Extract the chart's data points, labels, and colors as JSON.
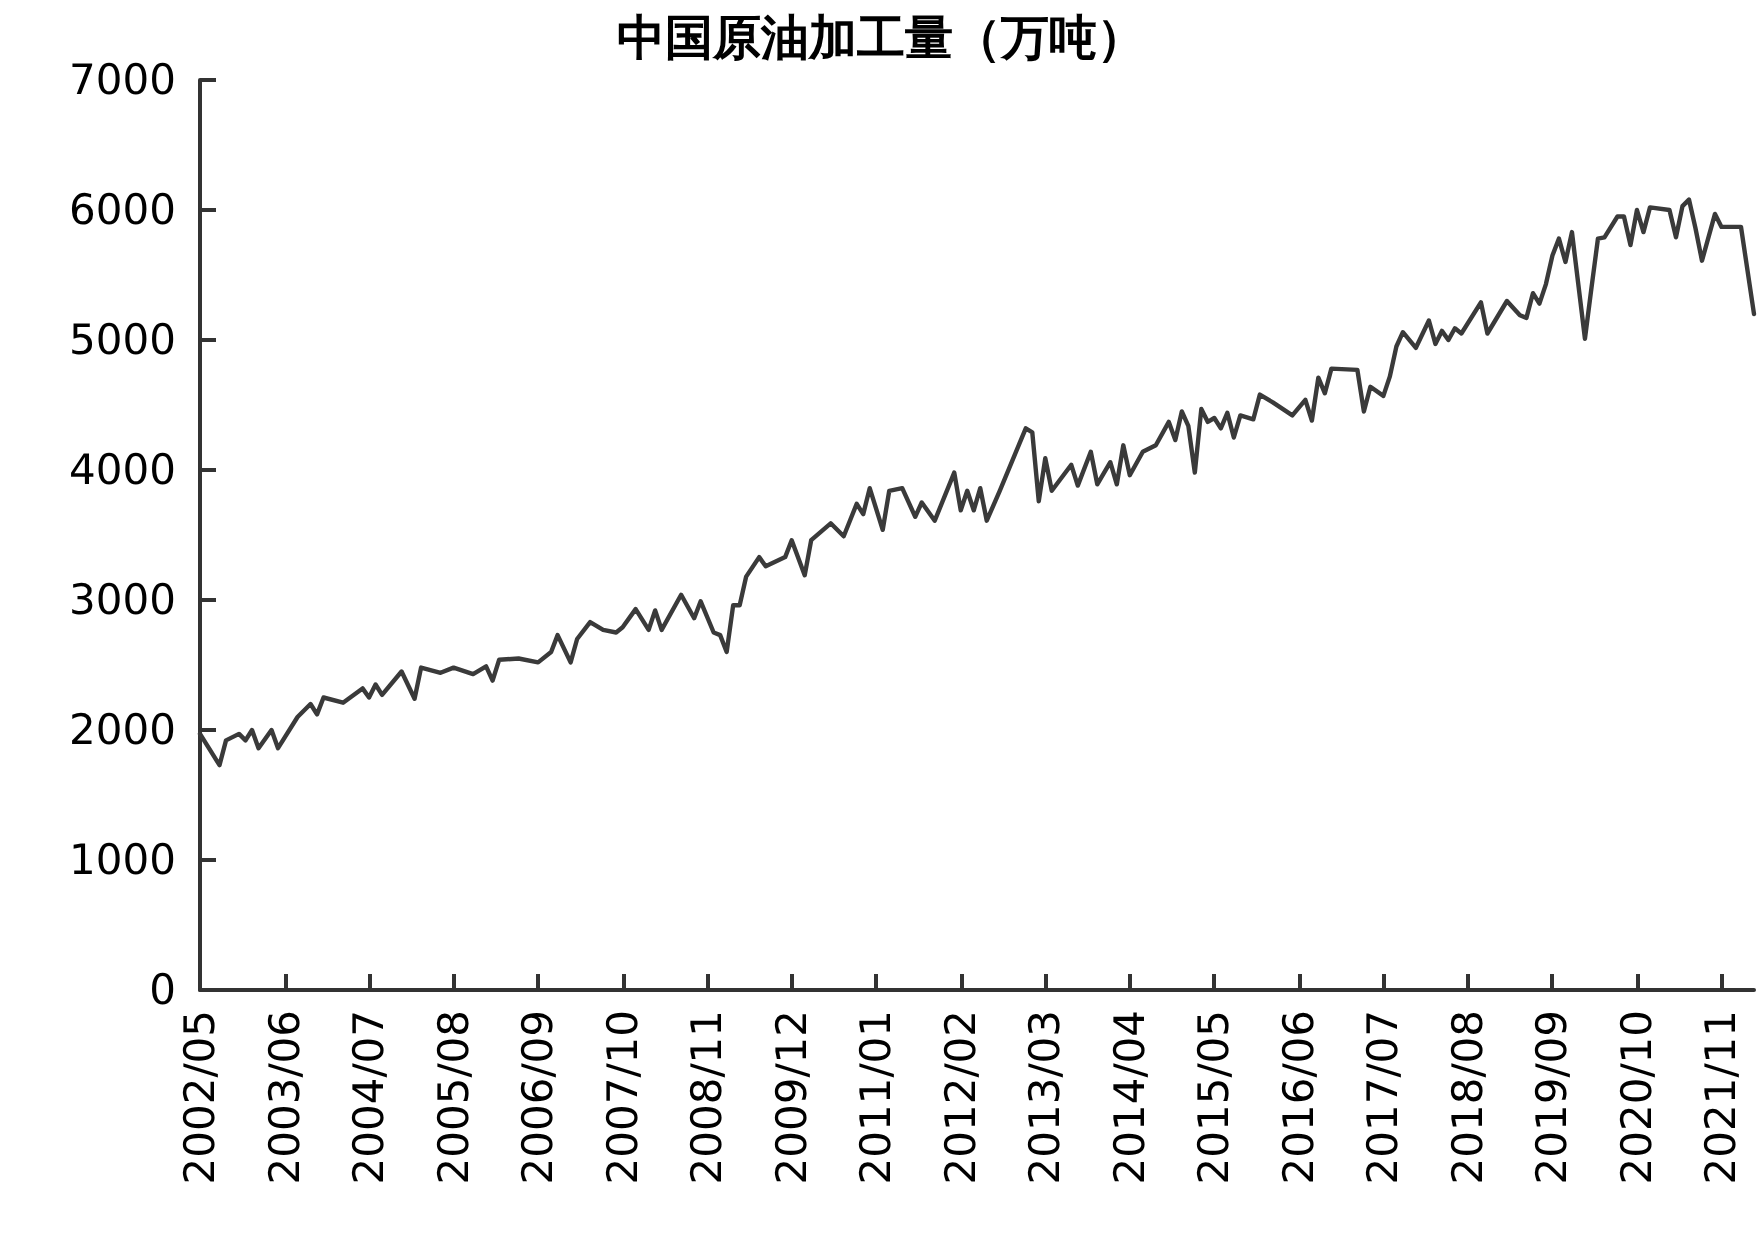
{
  "chart_data": {
    "type": "line",
    "title": "中国原油加工量（万吨）",
    "x": [
      "2002-05",
      "2002-08",
      "2002-09",
      "2002-11",
      "2002-12",
      "2003-01",
      "2003-02",
      "2003-04",
      "2003-05",
      "2003-08",
      "2003-10",
      "2003-11",
      "2003-12",
      "2004-03",
      "2004-06",
      "2004-07",
      "2004-08",
      "2004-09",
      "2004-12",
      "2005-02",
      "2005-03",
      "2005-06",
      "2005-08",
      "2005-11",
      "2006-01",
      "2006-02",
      "2006-03",
      "2006-06",
      "2006-09",
      "2006-11",
      "2006-12",
      "2007-02",
      "2007-03",
      "2007-05",
      "2007-07",
      "2007-09",
      "2007-10",
      "2007-12",
      "2008-02",
      "2008-03",
      "2008-04",
      "2008-07",
      "2008-09",
      "2008-10",
      "2008-12",
      "2009-01",
      "2009-02",
      "2009-03",
      "2009-04",
      "2009-05",
      "2009-07",
      "2009-08",
      "2009-11",
      "2009-12",
      "2010-02",
      "2010-03",
      "2010-06",
      "2010-08",
      "2010-10",
      "2010-11",
      "2010-12",
      "2011-02",
      "2011-03",
      "2011-05",
      "2011-07",
      "2011-08",
      "2011-10",
      "2012-01",
      "2012-02",
      "2012-03",
      "2012-04",
      "2012-05",
      "2012-06",
      "2012-08",
      "2012-12",
      "2013-01",
      "2013-02",
      "2013-03",
      "2013-04",
      "2013-07",
      "2013-08",
      "2013-10",
      "2013-11",
      "2014-01",
      "2014-02",
      "2014-03",
      "2014-04",
      "2014-06",
      "2014-08",
      "2014-10",
      "2014-11",
      "2014-12",
      "2015-01",
      "2015-02",
      "2015-03",
      "2015-04",
      "2015-05",
      "2015-06",
      "2015-07",
      "2015-08",
      "2015-09",
      "2015-11",
      "2015-12",
      "2016-02",
      "2016-05",
      "2016-07",
      "2016-08",
      "2016-09",
      "2016-10",
      "2016-11",
      "2017-03",
      "2017-04",
      "2017-05",
      "2017-07",
      "2017-08",
      "2017-09",
      "2017-10",
      "2017-12",
      "2018-02",
      "2018-03",
      "2018-04",
      "2018-05",
      "2018-06",
      "2018-07",
      "2018-10",
      "2018-11",
      "2019-02",
      "2019-04",
      "2019-05",
      "2019-06",
      "2019-07",
      "2019-08",
      "2019-09",
      "2019-10",
      "2019-11",
      "2019-12",
      "2020-02",
      "2020-03",
      "2020-04",
      "2020-05",
      "2020-07",
      "2020-08",
      "2020-09",
      "2020-10",
      "2020-11",
      "2020-12",
      "2021-03",
      "2021-04",
      "2021-05",
      "2021-06",
      "2021-07",
      "2021-08",
      "2021-10",
      "2021-11",
      "2022-02",
      "2022-04"
    ],
    "series": [
      {
        "color": "#3a3a3a",
        "values": [
          1970,
          1730,
          1920,
          1970,
          1920,
          2000,
          1860,
          2000,
          1860,
          2100,
          2200,
          2120,
          2250,
          2210,
          2320,
          2250,
          2350,
          2270,
          2450,
          2240,
          2480,
          2440,
          2480,
          2430,
          2490,
          2380,
          2540,
          2550,
          2520,
          2600,
          2730,
          2520,
          2700,
          2830,
          2770,
          2750,
          2790,
          2930,
          2770,
          2920,
          2770,
          3040,
          2860,
          2990,
          2750,
          2730,
          2600,
          2960,
          2960,
          3180,
          3330,
          3260,
          3330,
          3460,
          3190,
          3460,
          3590,
          3490,
          3740,
          3660,
          3860,
          3540,
          3840,
          3860,
          3640,
          3750,
          3610,
          3980,
          3690,
          3840,
          3690,
          3860,
          3610,
          3840,
          4320,
          4290,
          3760,
          4090,
          3840,
          4040,
          3880,
          4140,
          3890,
          4060,
          3890,
          4190,
          3960,
          4140,
          4190,
          4370,
          4230,
          4450,
          4340,
          3980,
          4470,
          4370,
          4400,
          4320,
          4440,
          4250,
          4420,
          4390,
          4580,
          4520,
          4420,
          4540,
          4380,
          4710,
          4590,
          4780,
          4770,
          4450,
          4640,
          4570,
          4720,
          4950,
          5060,
          4940,
          5150,
          4970,
          5070,
          5000,
          5090,
          5050,
          5290,
          5050,
          5300,
          5190,
          5170,
          5360,
          5280,
          5430,
          5650,
          5780,
          5600,
          5830,
          5010,
          5400,
          5780,
          5790,
          5950,
          5950,
          5730,
          6000,
          5830,
          6020,
          6000,
          5790,
          6030,
          6080,
          5860,
          5610,
          5970,
          5870,
          5870,
          5200
        ]
      }
    ],
    "xlim": [
      "2002-05",
      "2022-04"
    ],
    "xticks": [
      {
        "value": "2002-05",
        "label": "2002/05"
      },
      {
        "value": "2003-06",
        "label": "2003/06"
      },
      {
        "value": "2004-07",
        "label": "2004/07"
      },
      {
        "value": "2005-08",
        "label": "2005/08"
      },
      {
        "value": "2006-09",
        "label": "2006/09"
      },
      {
        "value": "2007-10",
        "label": "2007/10"
      },
      {
        "value": "2008-11",
        "label": "2008/11"
      },
      {
        "value": "2009-12",
        "label": "2009/12"
      },
      {
        "value": "2011-01",
        "label": "2011/01"
      },
      {
        "value": "2012-02",
        "label": "2012/02"
      },
      {
        "value": "2013-03",
        "label": "2013/03"
      },
      {
        "value": "2014-04",
        "label": "2014/04"
      },
      {
        "value": "2015-05",
        "label": "2015/05"
      },
      {
        "value": "2016-06",
        "label": "2016/06"
      },
      {
        "value": "2017-07",
        "label": "2017/07"
      },
      {
        "value": "2018-08",
        "label": "2018/08"
      },
      {
        "value": "2019-09",
        "label": "2019/09"
      },
      {
        "value": "2020-10",
        "label": "2020/10"
      },
      {
        "value": "2021-11",
        "label": "2021/11"
      }
    ],
    "ylim": [
      0,
      7000
    ],
    "yticks": [
      0,
      1000,
      2000,
      3000,
      4000,
      5000,
      6000,
      7000
    ],
    "grid": false,
    "marker": "none",
    "line_style": "solid"
  }
}
